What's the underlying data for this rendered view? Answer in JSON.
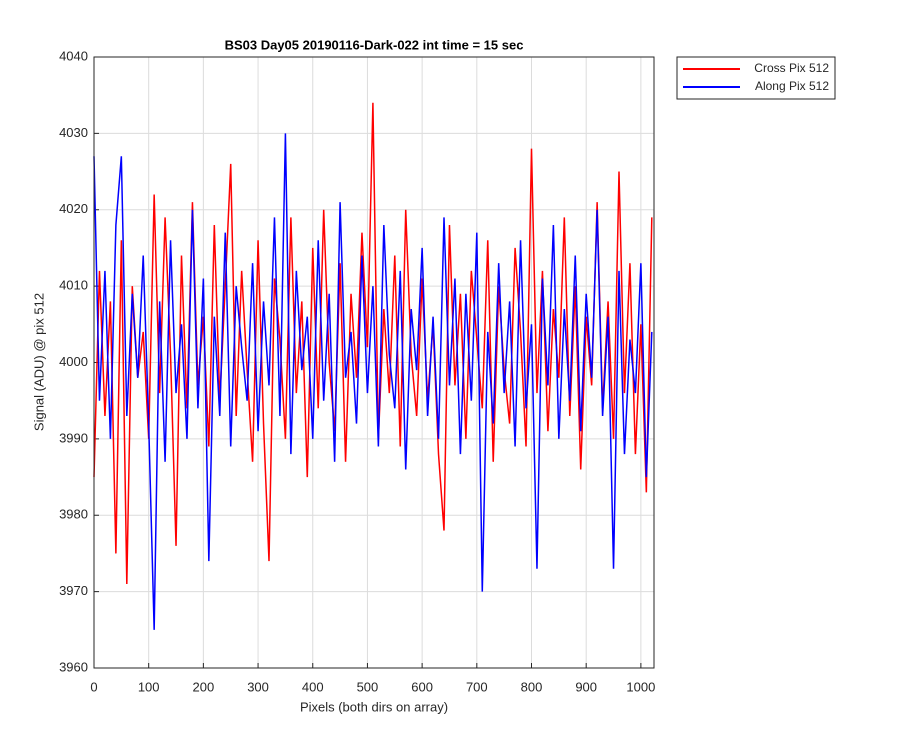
{
  "chart_data": {
    "type": "line",
    "title": "BS03 Day05 20190116-Dark-022 int time = 15 sec",
    "x_label": "Pixels (both dirs on array)",
    "y_label": "Signal (ADU) @ pix 512",
    "x": [
      0,
      10,
      20,
      30,
      40,
      50,
      60,
      70,
      80,
      90,
      100,
      110,
      120,
      130,
      140,
      150,
      160,
      170,
      180,
      190,
      200,
      210,
      220,
      230,
      240,
      250,
      260,
      270,
      280,
      290,
      300,
      310,
      320,
      330,
      340,
      350,
      360,
      370,
      380,
      390,
      400,
      410,
      420,
      430,
      440,
      450,
      460,
      470,
      480,
      490,
      500,
      510,
      520,
      530,
      540,
      550,
      560,
      570,
      580,
      590,
      600,
      610,
      620,
      630,
      640,
      650,
      660,
      670,
      680,
      690,
      700,
      710,
      720,
      730,
      740,
      750,
      760,
      770,
      780,
      790,
      800,
      810,
      820,
      830,
      840,
      850,
      860,
      870,
      880,
      890,
      900,
      910,
      920,
      930,
      940,
      950,
      960,
      970,
      980,
      990,
      1000,
      1010,
      1020
    ],
    "series": [
      {
        "name": "Cross Pix 512",
        "color": "#ff0000",
        "values": [
          3985,
          4012,
          3993,
          4008,
          3975,
          4016,
          3971,
          4010,
          3998,
          4004,
          3990,
          4022,
          3996,
          4019,
          4001,
          3976,
          4014,
          3994,
          4021,
          3997,
          4006,
          3989,
          4018,
          3995,
          4010,
          4026,
          3993,
          4012,
          3999,
          3987,
          4016,
          3992,
          3974,
          4011,
          4003,
          3990,
          4019,
          3996,
          4008,
          3985,
          4015,
          3994,
          4020,
          4000,
          3991,
          4013,
          3987,
          4009,
          3998,
          4017,
          4002,
          4034,
          3990,
          4007,
          3996,
          4014,
          3989,
          4020,
          4001,
          3993,
          4011,
          3995,
          4005,
          3988,
          3978,
          4018,
          3997,
          4009,
          3990,
          4012,
          4003,
          3994,
          4016,
          3987,
          4010,
          3999,
          3992,
          4015,
          4004,
          3989,
          4028,
          3996,
          4012,
          3991,
          4007,
          3998,
          4019,
          3993,
          4010,
          3986,
          4006,
          3997,
          4021,
          3994,
          4008,
          3990,
          4025,
          3996,
          4013,
          3988,
          4005,
          3983,
          4019
        ]
      },
      {
        "name": "Along Pix 512",
        "color": "#0000ff",
        "values": [
          4027,
          3995,
          4012,
          3990,
          4018,
          4027,
          3993,
          4009,
          3998,
          4014,
          3992,
          3965,
          4008,
          3987,
          4016,
          3996,
          4005,
          3990,
          4020,
          3994,
          4011,
          3974,
          4006,
          3993,
          4017,
          3989,
          4010,
          4002,
          3995,
          4013,
          3991,
          4008,
          3997,
          4019,
          3993,
          4030,
          3988,
          4012,
          3999,
          4006,
          3990,
          4016,
          3995,
          4009,
          3987,
          4021,
          3998,
          4004,
          3992,
          4014,
          3996,
          4010,
          3989,
          4018,
          4001,
          3994,
          4012,
          3986,
          4007,
          3999,
          4015,
          3993,
          4006,
          3990,
          4019,
          3997,
          4011,
          3988,
          4009,
          3995,
          4017,
          3970,
          4004,
          3992,
          4013,
          3996,
          4008,
          3989,
          4016,
          3994,
          4005,
          3973,
          4011,
          3997,
          4018,
          3990,
          4007,
          3995,
          4014,
          3991,
          4009,
          3998,
          4020,
          3993,
          4006,
          3973,
          4012,
          3988,
          4003,
          3996,
          4013,
          3985,
          4004
        ]
      }
    ],
    "xlim": [
      0,
      1024
    ],
    "ylim": [
      3960,
      4040
    ],
    "xticks": [
      0,
      100,
      200,
      300,
      400,
      500,
      600,
      700,
      800,
      900,
      1000
    ],
    "yticks": [
      3960,
      3970,
      3980,
      3990,
      4000,
      4010,
      4020,
      4030,
      4040
    ],
    "grid": true,
    "legend": "northeastoutside"
  }
}
